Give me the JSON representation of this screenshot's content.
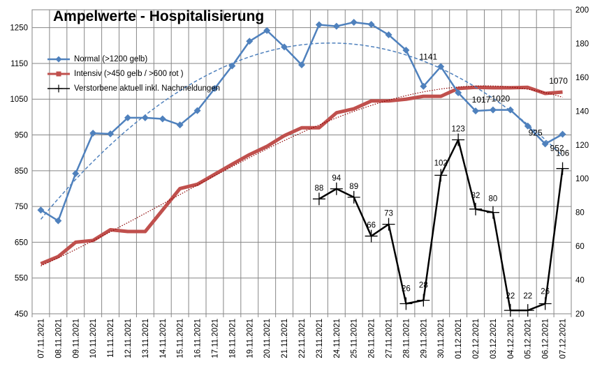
{
  "chart_data": {
    "type": "line",
    "title": "Ampelwerte - Hospitalisierung",
    "categories": [
      "07.11.2021",
      "08.11.2021",
      "09.11.2021",
      "10.11.2021",
      "11.11.2021",
      "12.11.2021",
      "13.11.2021",
      "14.11.2021",
      "15.11.2021",
      "16.11.2021",
      "17.11.2021",
      "18.11.2021",
      "19.11.2021",
      "20.11.2021",
      "21.11.2021",
      "22.11.2021",
      "23.11.2021",
      "24.11.2021",
      "25.11.2021",
      "26.11.2021",
      "27.11.2021",
      "28.11.2021",
      "29.11.2021",
      "30.11.2021",
      "01.12.2021",
      "02.12.2021",
      "03.12.2021",
      "04.12.2021",
      "05.12.2021",
      "06.12.2021",
      "07.12.2021"
    ],
    "y_left": {
      "ylim": [
        450,
        1300
      ],
      "ticks": [
        450,
        550,
        650,
        750,
        850,
        950,
        1050,
        1150,
        1250
      ]
    },
    "y_right": {
      "ylim": [
        20,
        200
      ],
      "ticks": [
        20,
        40,
        60,
        80,
        100,
        120,
        140,
        160,
        180,
        200
      ]
    },
    "grid": true,
    "legend_position": "top-left",
    "series": [
      {
        "name": "Normal (>1200 gelb)",
        "axis": "left",
        "color": "#4F81BD",
        "values": [
          740,
          710,
          842,
          955,
          953,
          998,
          998,
          995,
          978,
          1018,
          1080,
          1143,
          1212,
          1242,
          1196,
          1146,
          1258,
          1254,
          1265,
          1259,
          1230,
          1187,
          1086,
          1141,
          1068,
          1017,
          1020,
          1020,
          975,
          925,
          952
        ],
        "labels": {
          "23": "1141",
          "25": "1017",
          "27": "1020",
          "29": "925",
          "30": "952"
        }
      },
      {
        "name": "Intensiv (>450 gelb / >600 rot )",
        "axis": "left",
        "color": "#C0504D",
        "values": [
          590,
          610,
          650,
          655,
          685,
          680,
          680,
          740,
          800,
          812,
          840,
          868,
          895,
          918,
          948,
          970,
          970,
          1012,
          1023,
          1045,
          1045,
          1050,
          1058,
          1058,
          1080,
          1083,
          1082,
          1082,
          1083,
          1066,
          1070
        ],
        "labels": {
          "30": "1070"
        }
      },
      {
        "name": "Verstorbene aktuell inkl. Nachmeldungen",
        "axis": "right",
        "color": "#000000",
        "values": [
          null,
          null,
          null,
          null,
          null,
          null,
          null,
          null,
          null,
          null,
          null,
          null,
          null,
          null,
          null,
          null,
          88,
          94,
          89,
          66,
          73,
          26,
          28,
          102,
          123,
          82,
          80,
          22,
          22,
          26,
          106
        ],
        "labels": {
          "16": "88",
          "17": "94",
          "18": "89",
          "19": "66",
          "20": "73",
          "21": "26",
          "22": "28",
          "23": "102",
          "24": "123",
          "25": "82",
          "26": "80",
          "27": "22",
          "28": "22",
          "29": "26",
          "30": "106"
        }
      }
    ]
  }
}
